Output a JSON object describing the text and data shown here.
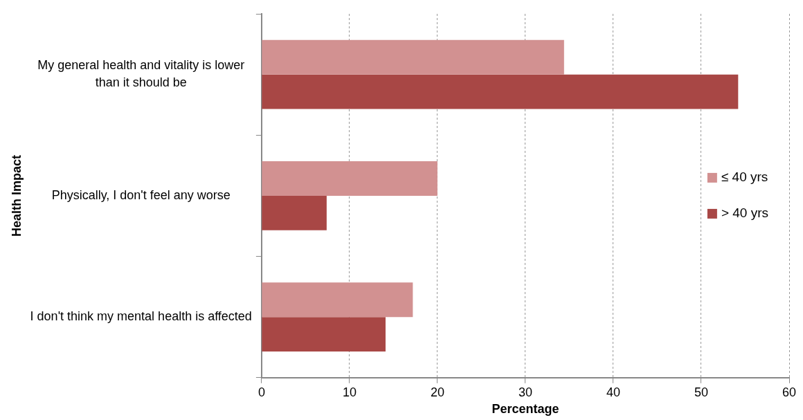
{
  "chart_data": {
    "type": "bar",
    "orientation": "horizontal",
    "xlabel": "Percentage",
    "ylabel": "Health Impact",
    "categories": [
      "My general health and vitality is lower than it should be",
      "Physically, I don't feel any worse",
      "I don't think my mental health is affected"
    ],
    "series": [
      {
        "name": "≤ 40 yrs",
        "color": "#d29191",
        "values": [
          34.4,
          20.0,
          17.2
        ]
      },
      {
        "name": "> 40 yrs",
        "color": "#a84745",
        "values": [
          54.2,
          7.4,
          14.1
        ]
      }
    ],
    "xlim": [
      0,
      60
    ],
    "xticks": [
      0,
      10,
      20,
      30,
      40,
      50,
      60
    ],
    "grid": "x",
    "legend": "right"
  }
}
